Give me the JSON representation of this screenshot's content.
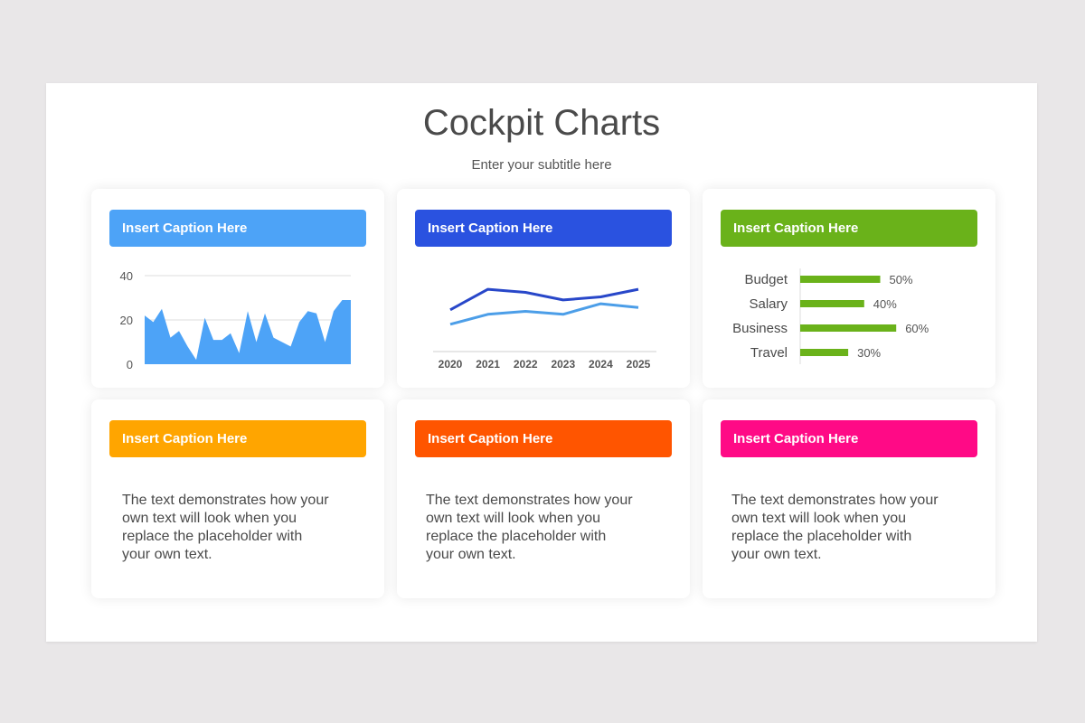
{
  "title": "Cockpit Charts",
  "subtitle": "Enter your subtitle here",
  "colors": {
    "blue_light": "#4da3f7",
    "blue_dark": "#2a52e0",
    "green": "#6ab21a",
    "orange": "#ffa500",
    "red_orange": "#ff5500",
    "pink": "#ff0a86",
    "line_light": "#4c9ee8",
    "line_dark": "#2847c9"
  },
  "cards": [
    {
      "caption": "Insert Caption Here"
    },
    {
      "caption": "Insert Caption Here"
    },
    {
      "caption": "Insert Caption Here"
    },
    {
      "caption": "Insert Caption Here",
      "text": "The text demonstrates how your own text will look when you replace the placeholder with your own text."
    },
    {
      "caption": "Insert Caption Here",
      "text": "The text demonstrates how your own text will look when you replace the placeholder with your own text."
    },
    {
      "caption": "Insert Caption Here",
      "text": "The text demonstrates how your own text will look when you replace the placeholder with your own text."
    }
  ],
  "chart_data": [
    {
      "type": "area",
      "yticks": [
        0,
        20,
        40
      ],
      "ylim": [
        0,
        40
      ],
      "grid": true,
      "values": [
        22,
        19,
        25,
        12,
        15,
        8,
        2,
        21,
        11,
        11,
        14,
        5,
        24,
        10,
        23,
        12,
        10,
        8,
        19,
        24,
        23,
        10,
        24,
        29,
        29
      ]
    },
    {
      "type": "line",
      "categories": [
        "2020",
        "2021",
        "2022",
        "2023",
        "2024",
        "2025"
      ],
      "ylim": [
        0,
        10
      ],
      "series": [
        {
          "values": [
            5.5,
            8.2,
            7.8,
            6.8,
            7.2,
            8.2
          ],
          "color": "#2847c9"
        },
        {
          "values": [
            3.6,
            4.9,
            5.3,
            4.9,
            6.3,
            5.8
          ],
          "color": "#4c9ee8"
        }
      ]
    },
    {
      "type": "bar",
      "orientation": "horizontal",
      "categories": [
        "Budget",
        "Salary",
        "Business",
        "Travel"
      ],
      "values": [
        50,
        40,
        60,
        30
      ],
      "labels": [
        "50%",
        "40%",
        "60%",
        "30%"
      ],
      "xlim": [
        0,
        100
      ]
    }
  ]
}
